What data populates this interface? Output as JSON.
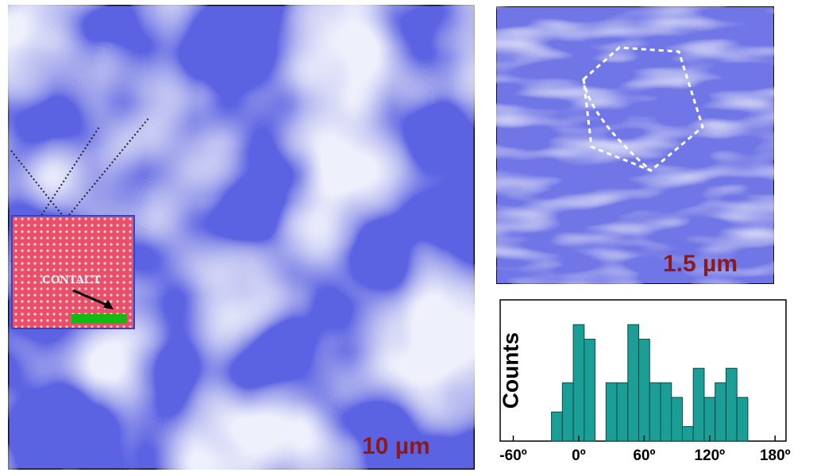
{
  "images": [
    {
      "scale_label": "10 µm"
    },
    {
      "scale_label": "1.5 µm"
    }
  ],
  "inset_label": "CONTACT",
  "chart_data": {
    "type": "histogram",
    "ylabel": "Counts",
    "color": "#1a9e96",
    "bins": [
      -25,
      -15,
      -5,
      5,
      15,
      25,
      35,
      45,
      55,
      65,
      75,
      85,
      95,
      105,
      115,
      125,
      135,
      145,
      155
    ],
    "counts": [
      2,
      4,
      8,
      7,
      0,
      4,
      4,
      8,
      7,
      4,
      4,
      3,
      1,
      5,
      3,
      4,
      5,
      3
    ],
    "xlim": [
      -72,
      190
    ],
    "ylim": [
      0,
      9.7
    ],
    "xticks": [
      {
        "value": -60,
        "label": "-60º"
      },
      {
        "value": 0,
        "label": "0º"
      },
      {
        "value": 60,
        "label": "60º"
      },
      {
        "value": 120,
        "label": "120º"
      },
      {
        "value": 180,
        "label": "180º"
      }
    ]
  }
}
